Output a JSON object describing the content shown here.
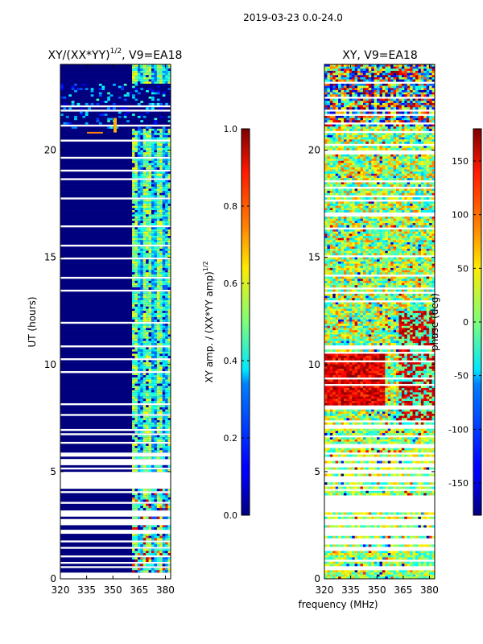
{
  "suptitle": "2019-03-23 0.0-24.0",
  "shared_xlabel": "frequency (MHz)",
  "chart_data": [
    {
      "type": "heatmap",
      "title_base": "XY/(XX*YY)",
      "title_sup": "1/2",
      "title_suffix": ", V9=EA18",
      "xlabel": "",
      "ylabel": "UT (hours)",
      "xlim": [
        320,
        383
      ],
      "ylim": [
        0,
        24
      ],
      "xticks": [
        320,
        335,
        350,
        365,
        380
      ],
      "yticks": [
        0,
        5,
        10,
        15,
        20
      ],
      "colorbar": {
        "label_base": "XY amp. / (XX*YY amp)",
        "label_sup": "1/2",
        "range": [
          0.0,
          1.0
        ],
        "ticks": [
          "0.0",
          "0.2",
          "0.4",
          "0.6",
          "0.8",
          "1.0"
        ],
        "colormap": "jet"
      }
    },
    {
      "type": "heatmap",
      "title_base": "XY, V9=EA18",
      "xlabel": "frequency (MHz)",
      "ylabel": "",
      "xlim": [
        320,
        383
      ],
      "ylim": [
        0,
        24
      ],
      "xticks": [
        320,
        335,
        350,
        365,
        380
      ],
      "yticks": [
        0,
        5,
        10,
        15,
        20
      ],
      "colorbar": {
        "label_base": "phase (deg)",
        "range": [
          -180,
          180
        ],
        "ticks": [
          "-150",
          "-100",
          "-50",
          "0",
          "50",
          "100",
          "150"
        ],
        "colormap": "jet"
      }
    }
  ]
}
